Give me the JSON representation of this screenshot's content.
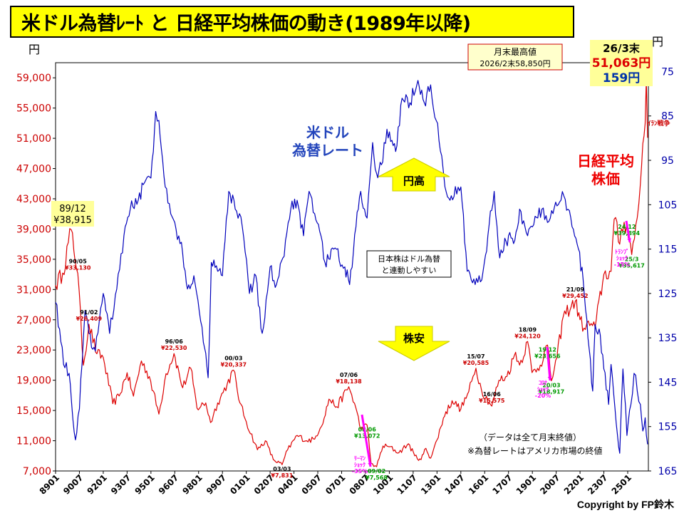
{
  "title": "米ドル為替ﾚｰﾄ と 日経平均株価の動き(1989年以降)",
  "copyright": "Copyright by FP鈴木",
  "colors": {
    "nikkei": "#dd0000",
    "usdjpy": "#0000bb",
    "bg": "#ffffff",
    "arrow": "#ffff00",
    "peak_box": "#ffff99",
    "shock": "#ff00ff",
    "low_label": "#00aa00"
  },
  "chart_data": {
    "type": "line",
    "title": "米ドル為替ﾚｰﾄ と 日経平均株価の動き(1989年以降)",
    "x_tick_labels": [
      "8901",
      "9007",
      "9201",
      "9307",
      "9501",
      "9607",
      "9801",
      "9907",
      "0101",
      "0207",
      "0401",
      "0507",
      "0701",
      "0807",
      "1001",
      "1107",
      "1301",
      "1407",
      "1601",
      "1707",
      "1901",
      "2007",
      "2201",
      "2307",
      "2501"
    ],
    "left_axis": {
      "unit": "円",
      "range": [
        7000,
        61000
      ],
      "ticks": [
        "59,000",
        "55,000",
        "51,000",
        "47,000",
        "43,000",
        "39,000",
        "35,000",
        "31,000",
        "27,000",
        "23,000",
        "19,000",
        "15,000",
        "11,000",
        "7,000"
      ]
    },
    "right_axis": {
      "unit": "円",
      "range": [
        73,
        165
      ],
      "reversed": true,
      "ticks": [
        "75",
        "85",
        "95",
        "105",
        "115",
        "125",
        "135",
        "145",
        "155",
        "165"
      ]
    },
    "series": [
      {
        "name": "日経平均株価",
        "axis": "left",
        "color": "#dd0000",
        "points": [
          [
            1989.0,
            31581
          ],
          [
            1989.45,
            33183
          ],
          [
            1989.98,
            38915
          ],
          [
            1990.4,
            33130
          ],
          [
            1990.75,
            20984
          ],
          [
            1991.1,
            26409
          ],
          [
            1991.6,
            22500
          ],
          [
            1992.0,
            22023
          ],
          [
            1992.6,
            15910
          ],
          [
            1993.0,
            16925
          ],
          [
            1993.5,
            20000
          ],
          [
            1993.9,
            16900
          ],
          [
            1994.4,
            21552
          ],
          [
            1994.9,
            19500
          ],
          [
            1995.5,
            14517
          ],
          [
            1995.95,
            19868
          ],
          [
            1996.45,
            22530
          ],
          [
            1997.0,
            18000
          ],
          [
            1997.5,
            20605
          ],
          [
            1997.9,
            15300
          ],
          [
            1998.45,
            16000
          ],
          [
            1998.75,
            13406
          ],
          [
            1999.2,
            16000
          ],
          [
            1999.8,
            18500
          ],
          [
            2000.2,
            20337
          ],
          [
            2000.6,
            16000
          ],
          [
            2001.0,
            13500
          ],
          [
            2001.7,
            9800
          ],
          [
            2002.2,
            11000
          ],
          [
            2002.7,
            8500
          ],
          [
            2003.25,
            7831
          ],
          [
            2003.6,
            9800
          ],
          [
            2004.2,
            11700
          ],
          [
            2004.8,
            11000
          ],
          [
            2005.3,
            11200
          ],
          [
            2005.9,
            14000
          ],
          [
            2006.2,
            16500
          ],
          [
            2006.7,
            15500
          ],
          [
            2007.45,
            18138
          ],
          [
            2007.9,
            15300
          ],
          [
            2008.2,
            12500
          ],
          [
            2008.6,
            13072
          ],
          [
            2008.85,
            8000
          ],
          [
            2009.2,
            7568
          ],
          [
            2009.6,
            10300
          ],
          [
            2010.0,
            10200
          ],
          [
            2010.6,
            9400
          ],
          [
            2011.2,
            10600
          ],
          [
            2011.6,
            9000
          ],
          [
            2012.0,
            8500
          ],
          [
            2012.3,
            10000
          ],
          [
            2012.6,
            8700
          ],
          [
            2013.0,
            11100
          ],
          [
            2013.4,
            14000
          ],
          [
            2013.95,
            16300
          ],
          [
            2014.5,
            15200
          ],
          [
            2015.0,
            17500
          ],
          [
            2015.45,
            20585
          ],
          [
            2015.8,
            17700
          ],
          [
            2016.45,
            15575
          ],
          [
            2016.9,
            19000
          ],
          [
            2017.4,
            19500
          ],
          [
            2017.95,
            22700
          ],
          [
            2018.2,
            21000
          ],
          [
            2018.7,
            24120
          ],
          [
            2018.98,
            20014
          ],
          [
            2019.5,
            21000
          ],
          [
            2019.95,
            23656
          ],
          [
            2020.2,
            18917
          ],
          [
            2020.55,
            22000
          ],
          [
            2020.95,
            27500
          ],
          [
            2021.7,
            29452
          ],
          [
            2022.0,
            27000
          ],
          [
            2022.25,
            25900
          ],
          [
            2022.7,
            26500
          ],
          [
            2022.95,
            26000
          ],
          [
            2023.5,
            33000
          ],
          [
            2023.95,
            33400
          ],
          [
            2024.15,
            40300
          ],
          [
            2024.5,
            37000
          ],
          [
            2024.6,
            39000
          ],
          [
            2024.95,
            39894
          ],
          [
            2025.25,
            35617
          ],
          [
            2025.6,
            40500
          ],
          [
            2025.8,
            45000
          ],
          [
            2025.95,
            50300
          ],
          [
            2026.1,
            53000
          ],
          [
            2026.17,
            58850
          ],
          [
            2026.25,
            51063
          ]
        ]
      },
      {
        "name": "米ドル為替レート",
        "axis": "right",
        "color": "#0000bb",
        "points": [
          [
            1989.0,
            127
          ],
          [
            1989.25,
            133
          ],
          [
            1989.5,
            141
          ],
          [
            1989.85,
            143
          ],
          [
            1990.25,
            158
          ],
          [
            1990.5,
            151
          ],
          [
            1990.85,
            129
          ],
          [
            1991.1,
            134
          ],
          [
            1991.5,
            138
          ],
          [
            1992.0,
            125
          ],
          [
            1992.4,
            134
          ],
          [
            1992.85,
            124
          ],
          [
            1993.3,
            112
          ],
          [
            1993.7,
            106
          ],
          [
            1994.2,
            104
          ],
          [
            1994.6,
            100
          ],
          [
            1995.0,
            99
          ],
          [
            1995.3,
            84
          ],
          [
            1995.5,
            86
          ],
          [
            1995.9,
            101
          ],
          [
            1996.5,
            109
          ],
          [
            1997.0,
            116
          ],
          [
            1997.3,
            124
          ],
          [
            1997.7,
            121
          ],
          [
            1998.3,
            136
          ],
          [
            1998.6,
            144
          ],
          [
            1998.8,
            118
          ],
          [
            1999.2,
            120
          ],
          [
            1999.5,
            121
          ],
          [
            1999.9,
            102
          ],
          [
            2000.3,
            106
          ],
          [
            2000.75,
            110
          ],
          [
            2001.2,
            125
          ],
          [
            2001.6,
            121
          ],
          [
            2002.0,
            134
          ],
          [
            2002.5,
            119
          ],
          [
            2002.9,
            123
          ],
          [
            2003.3,
            117
          ],
          [
            2003.8,
            106
          ],
          [
            2004.2,
            104
          ],
          [
            2004.6,
            112
          ],
          [
            2004.95,
            102
          ],
          [
            2005.3,
            107
          ],
          [
            2005.7,
            112
          ],
          [
            2005.95,
            118
          ],
          [
            2006.5,
            115
          ],
          [
            2007.2,
            119
          ],
          [
            2007.5,
            123
          ],
          [
            2007.9,
            110
          ],
          [
            2008.2,
            102
          ],
          [
            2008.6,
            108
          ],
          [
            2008.95,
            91
          ],
          [
            2009.2,
            98
          ],
          [
            2009.5,
            96
          ],
          [
            2009.85,
            88
          ],
          [
            2010.4,
            93
          ],
          [
            2010.8,
            81
          ],
          [
            2011.3,
            82
          ],
          [
            2011.8,
            77
          ],
          [
            2012.2,
            82
          ],
          [
            2012.6,
            78
          ],
          [
            2012.95,
            86
          ],
          [
            2013.3,
            94
          ],
          [
            2013.5,
            101
          ],
          [
            2013.9,
            103
          ],
          [
            2014.5,
            101
          ],
          [
            2014.9,
            120
          ],
          [
            2015.4,
            123
          ],
          [
            2015.9,
            120
          ],
          [
            2016.2,
            112
          ],
          [
            2016.6,
            102
          ],
          [
            2016.95,
            117
          ],
          [
            2017.5,
            112
          ],
          [
            2017.9,
            113
          ],
          [
            2018.2,
            106
          ],
          [
            2018.7,
            112
          ],
          [
            2019.0,
            110
          ],
          [
            2019.6,
            106
          ],
          [
            2019.95,
            109
          ],
          [
            2020.3,
            107
          ],
          [
            2020.8,
            104
          ],
          [
            2020.98,
            103
          ],
          [
            2021.5,
            110
          ],
          [
            2021.9,
            115
          ],
          [
            2022.2,
            122
          ],
          [
            2022.5,
            135
          ],
          [
            2022.8,
            147
          ],
          [
            2022.95,
            132
          ],
          [
            2023.2,
            133
          ],
          [
            2023.5,
            142
          ],
          [
            2023.8,
            150
          ],
          [
            2023.95,
            141
          ],
          [
            2024.2,
            151
          ],
          [
            2024.5,
            161
          ],
          [
            2024.7,
            142
          ],
          [
            2024.95,
            157
          ],
          [
            2025.2,
            150
          ],
          [
            2025.4,
            143
          ],
          [
            2025.6,
            147
          ],
          [
            2025.8,
            150
          ],
          [
            2025.95,
            156
          ],
          [
            2026.1,
            153
          ],
          [
            2026.25,
            159
          ]
        ]
      }
    ],
    "annotations": [
      {
        "label": "89/12",
        "value": "¥38,915",
        "x": 1989.98,
        "y": 38915,
        "style": "peak_box"
      },
      {
        "label": "90/05",
        "value": "¥33,130",
        "x": 1990.4,
        "y": 33130,
        "style": "high"
      },
      {
        "label": "91/02",
        "value": "¥26,409",
        "x": 1991.1,
        "y": 26409,
        "style": "high"
      },
      {
        "label": "96/06",
        "value": "¥22,530",
        "x": 1996.45,
        "y": 22530,
        "style": "high"
      },
      {
        "label": "00/03",
        "value": "¥20,337",
        "x": 2000.2,
        "y": 20337,
        "style": "high"
      },
      {
        "label": "03/03",
        "value": "¥7,831",
        "x": 2003.25,
        "y": 7831,
        "style": "low_red"
      },
      {
        "label": "07/06",
        "value": "¥18,138",
        "x": 2007.45,
        "y": 18138,
        "style": "high"
      },
      {
        "label": "08/06",
        "value": "¥13,072",
        "x": 2008.6,
        "y": 13072,
        "style": "low"
      },
      {
        "label": "09/02",
        "value": "¥7,568",
        "x": 2009.2,
        "y": 7568,
        "style": "low"
      },
      {
        "label": "15/07",
        "value": "¥20,585",
        "x": 2015.45,
        "y": 20585,
        "style": "high"
      },
      {
        "label": "16/06",
        "value": "¥15,575",
        "x": 2016.45,
        "y": 15575,
        "style": "high"
      },
      {
        "label": "18/09",
        "value": "¥24,120",
        "x": 2018.7,
        "y": 24120,
        "style": "high"
      },
      {
        "label": "19/12",
        "value": "¥23,656",
        "x": 2019.95,
        "y": 23656,
        "style": "low"
      },
      {
        "label": "20/03",
        "value": "¥18,917",
        "x": 2020.2,
        "y": 18917,
        "style": "low"
      },
      {
        "label": "21/09",
        "value": "¥29,452",
        "x": 2021.7,
        "y": 29452,
        "style": "high"
      },
      {
        "label": "24/12",
        "value": "¥39,894",
        "x": 2024.95,
        "y": 39894,
        "style": "low"
      },
      {
        "label": "25/3",
        "value": "¥35,617",
        "x": 2025.25,
        "y": 35617,
        "style": "low"
      }
    ],
    "labels": {
      "monthly_high_title": "月末最高値",
      "monthly_high_value": "2026/2末58,850円",
      "latest_date": "26/3末",
      "latest_nikkei": "51,063円",
      "latest_usdjpy": "159円",
      "usd_series_line1": "米ドル",
      "usd_series_line2": "為替レート",
      "nikkei_series_line1": "日経平均",
      "nikkei_series_line2": "株価",
      "yen_strong": "円高",
      "stocks_low": "株安",
      "note_box_line1": "日本株はドル為替",
      "note_box_line2": "と連動しやすい",
      "footnote1": "（データは全て月末終値）",
      "footnote2": "※為替レートはアメリカ市場の終値",
      "iran_war": "ｲﾗﾝ戦争",
      "lehman_line1": "ﾘｰﾏﾝ",
      "lehman_line2": "ｼｮｯｸ",
      "lehman_line3": "-35%",
      "corona_line1": "ｺﾛﾅ",
      "corona_line2": "ｼｮｯｸ",
      "corona_line3": "-20%",
      "trump_line1": "ﾄﾗﾝﾌﾟ",
      "trump_line2": "ｼｮｯｸ",
      "trump_line3": "-15%"
    }
  }
}
